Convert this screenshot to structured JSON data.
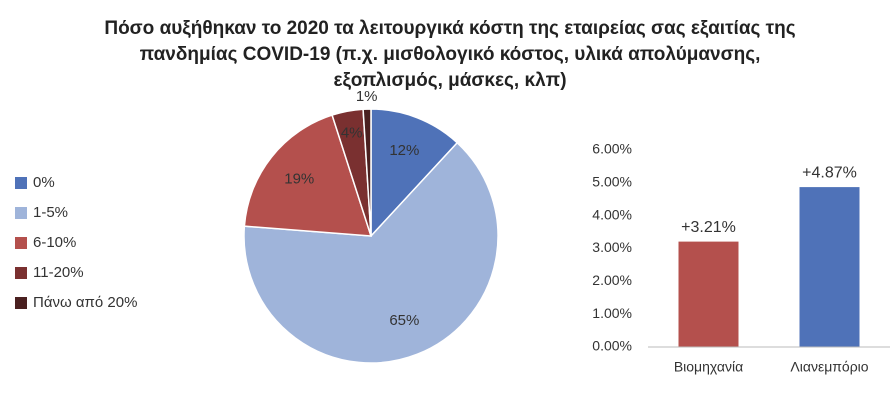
{
  "chart_data": [
    {
      "type": "pie",
      "title": "Πόσο αυξήθηκαν το 2020 τα λειτουργικά κόστη της εταιρείας σας εξαιτίας της πανδημίας COVID-19 (π.χ. μισθολογικό κόστος, υλικά απολύμανσης, εξοπλισμός, μάσκες, κλπ)",
      "categories": [
        "0%",
        "1-5%",
        "6-10%",
        "11-20%",
        "Πάνω από 20%"
      ],
      "values": [
        12,
        65,
        19,
        4,
        1
      ],
      "value_labels": [
        "12%",
        "65%",
        "19%",
        "4%",
        "1%"
      ],
      "colors": [
        "#4f72b8",
        "#9fb4da",
        "#b4504d",
        "#7a3030",
        "#4a2020"
      ],
      "legend": "left"
    },
    {
      "type": "bar",
      "categories": [
        "Βιομηχανία",
        "Λιανεμπόριο"
      ],
      "values": [
        3.21,
        4.87
      ],
      "value_labels": [
        "+3.21%",
        "+4.87%"
      ],
      "colors": [
        "#b4504d",
        "#4f72b8"
      ],
      "ylim": [
        0,
        6
      ],
      "yticks": [
        {
          "value": 0,
          "label": "0.00%"
        },
        {
          "value": 1,
          "label": "1.00%"
        },
        {
          "value": 2,
          "label": "2.00%"
        },
        {
          "value": 3,
          "label": "3.00%"
        },
        {
          "value": 4,
          "label": "4.00%"
        },
        {
          "value": 5,
          "label": "5.00%"
        },
        {
          "value": 6,
          "label": "6.00%"
        }
      ],
      "grid": false
    }
  ]
}
